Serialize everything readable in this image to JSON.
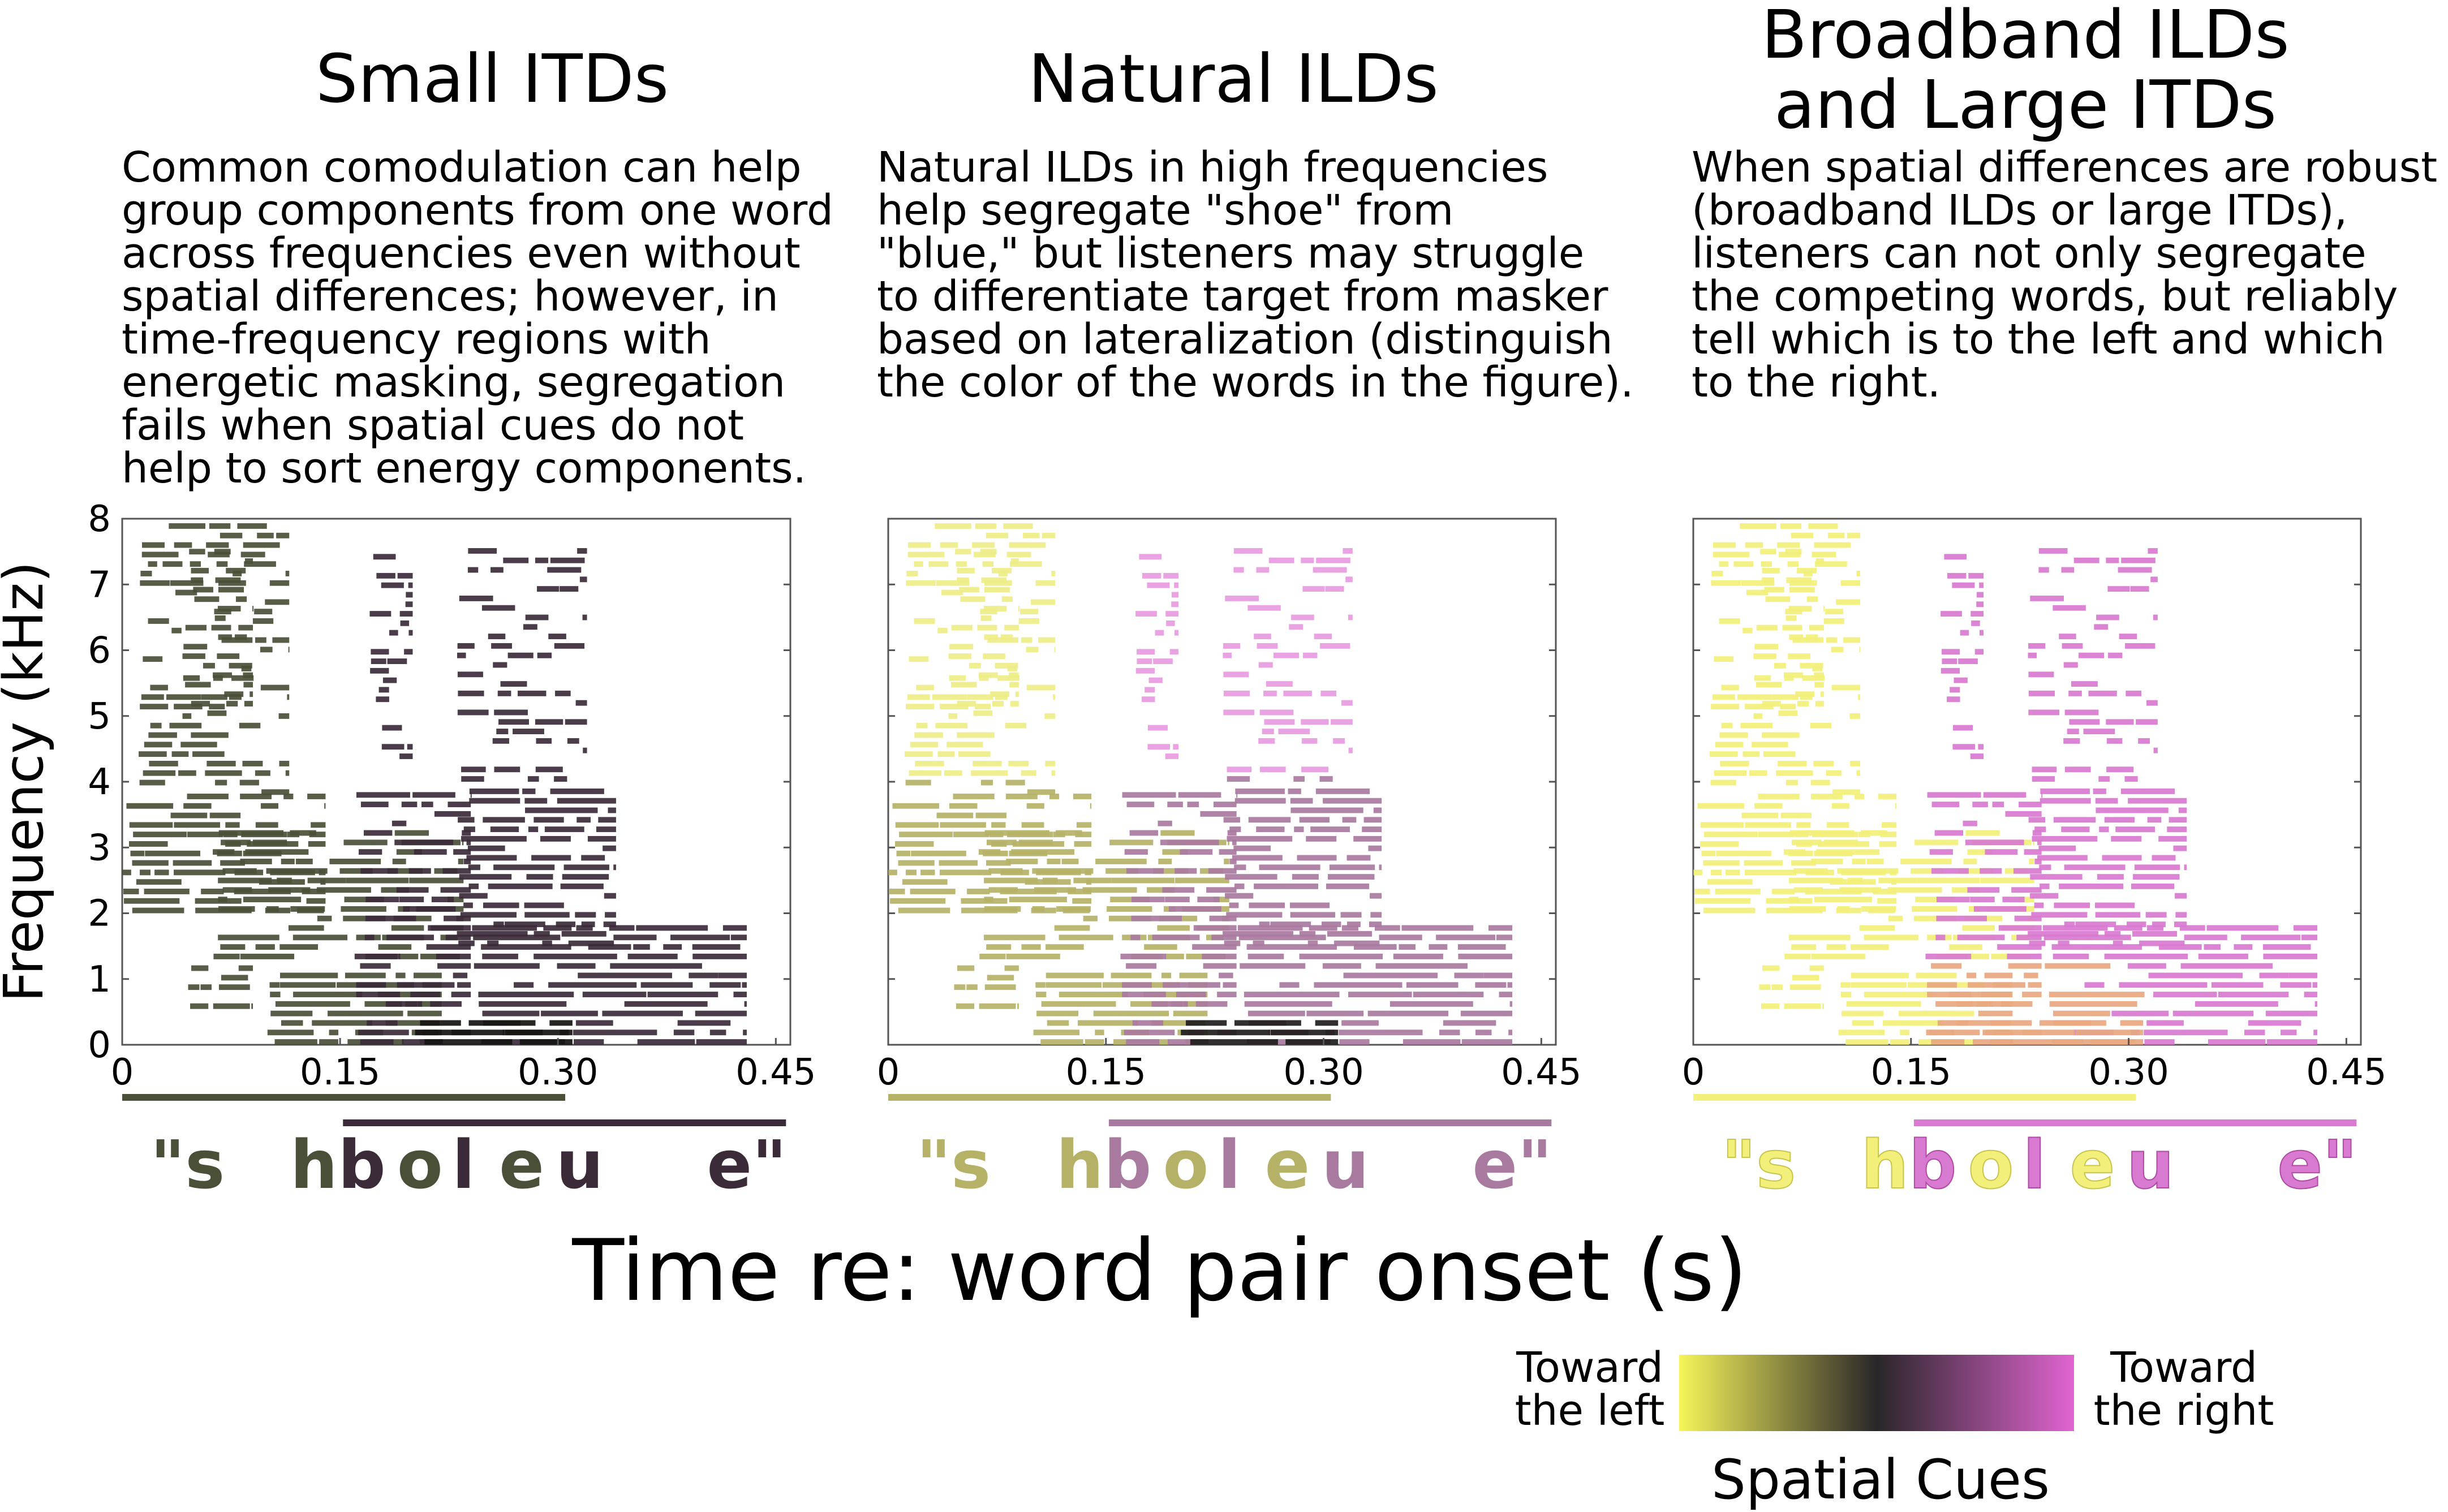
{
  "panels": [
    {
      "title": "Small ITDs",
      "paragraph": "Common comodulation can help\ngroup components from one word\nacross frequencies even without\nspatial differences; however, in\ntime-frequency regions with\nenergetic masking, segregation\nfails when spatial cues do not\nhelp to sort energy components.",
      "left_color": "#4a4f38",
      "right_color": "#3b2b38",
      "overlap_color": "#151312"
    },
    {
      "title": "Natural ILDs",
      "paragraph": "Natural ILDs in high frequencies\nhelp segregate \"shoe\" from\n\"blue,\" but listeners may struggle\nto differentiate target from masker\nbased on lateralization (distinguish\nthe color of the words in the figure).",
      "left_color": "#b5b268",
      "right_color": "#a97aa0",
      "high_left_color": "#eeee88",
      "high_right_color": "#e89be0",
      "overlap_color": "#1e1c1c"
    },
    {
      "title": "Broadband ILDs\nand Large ITDs",
      "paragraph": "When spatial differences are robust\n(broadband ILDs or large ITDs),\nlisteners can not only segregate\nthe competing words, but reliably\ntell which is to the left and which\nto the right.",
      "left_color": "#f2f07a",
      "right_color": "#d87ad0",
      "overlap_color": "#e8a880"
    }
  ],
  "chart_data": {
    "type": "heatmap",
    "description_free": true,
    "ylabel": "Frequency (kHz)",
    "xlabel": "Time re: word pair onset (s)",
    "xlim": [
      0,
      0.46
    ],
    "ylim": [
      0,
      8
    ],
    "x_ticks": [
      "0",
      "0.15",
      "0.30",
      "0.45"
    ],
    "x_tick_values": [
      0,
      0.15,
      0.3,
      0.45
    ],
    "y_ticks": [
      "0",
      "1",
      "2",
      "3",
      "4",
      "5",
      "6",
      "7",
      "8"
    ],
    "y_tick_values": [
      0,
      1,
      2,
      3,
      4,
      5,
      6,
      7,
      8
    ],
    "word_left": {
      "name": "shoe",
      "start": 0.0,
      "end": 0.305
    },
    "word_right": {
      "name": "blue",
      "start": 0.152,
      "end": 0.457
    },
    "letters": [
      {
        "text": "\"s",
        "word": "left"
      },
      {
        "text": "h",
        "word": "left"
      },
      {
        "text": "b",
        "word": "right"
      },
      {
        "text": "o",
        "word": "left"
      },
      {
        "text": "l",
        "word": "right"
      },
      {
        "text": "e",
        "word": "left"
      },
      {
        "text": "u",
        "word": "right"
      },
      {
        "text": "e\"",
        "word": "right"
      }
    ]
  },
  "colorbar": {
    "left_label": "Toward\nthe left",
    "right_label": "Toward\nthe right",
    "title": "Spatial Cues",
    "stops": [
      "#f6f55a",
      "#2a2629",
      "#e064d0"
    ]
  }
}
